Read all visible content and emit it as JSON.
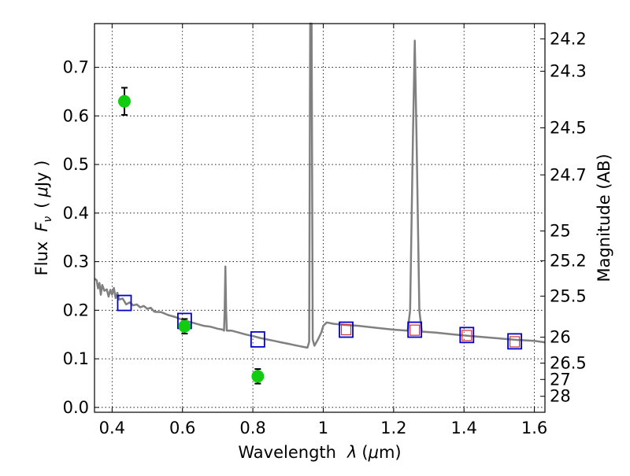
{
  "chart_data": {
    "type": "line",
    "title": "",
    "xlabel": "Wavelength",
    "xlabel_symbol": "λ",
    "xlabel_unit_open": "(",
    "xlabel_unit_mu": "μ",
    "xlabel_unit_rest": "m)",
    "ylabel": "Flux",
    "ylabel_symbol_F": "F",
    "ylabel_symbol_nu": "ν",
    "ylabel_unit_open": "(",
    "ylabel_unit_mu": "μ",
    "ylabel_unit_rest": "Jy )",
    "y2label": "Magnitude (AB)",
    "xlim": [
      0.35,
      1.63
    ],
    "ylim": [
      -0.01,
      0.79
    ],
    "grid": true,
    "x_ticks": [
      {
        "value": 0.4,
        "label": "0.4"
      },
      {
        "value": 0.6,
        "label": "0.6"
      },
      {
        "value": 0.8,
        "label": "0.8"
      },
      {
        "value": 1.0,
        "label": "1"
      },
      {
        "value": 1.2,
        "label": "1.2"
      },
      {
        "value": 1.4,
        "label": "1.4"
      },
      {
        "value": 1.6,
        "label": "1.6"
      }
    ],
    "y_ticks": [
      {
        "value": 0.0,
        "label": "0.0"
      },
      {
        "value": 0.1,
        "label": "0.1"
      },
      {
        "value": 0.2,
        "label": "0.2"
      },
      {
        "value": 0.3,
        "label": "0.3"
      },
      {
        "value": 0.4,
        "label": "0.4"
      },
      {
        "value": 0.5,
        "label": "0.5"
      },
      {
        "value": 0.6,
        "label": "0.6"
      },
      {
        "value": 0.7,
        "label": "0.7"
      }
    ],
    "y2_ticks": [
      {
        "mag": 24.2,
        "label": "24.2"
      },
      {
        "mag": 24.3,
        "label": "24.3"
      },
      {
        "mag": 24.5,
        "label": "24.5"
      },
      {
        "mag": 24.7,
        "label": "24.7"
      },
      {
        "mag": 25.0,
        "label": "25"
      },
      {
        "mag": 25.2,
        "label": "25.2"
      },
      {
        "mag": 25.5,
        "label": "25.5"
      },
      {
        "mag": 26.0,
        "label": "26"
      },
      {
        "mag": 26.5,
        "label": "26.5"
      },
      {
        "mag": 27.0,
        "label": "27"
      },
      {
        "mag": 28.0,
        "label": "28"
      }
    ],
    "series": [
      {
        "kind": "model-spectrum",
        "color": "#808080",
        "points": [
          [
            0.35,
            0.265
          ],
          [
            0.356,
            0.262
          ],
          [
            0.36,
            0.245
          ],
          [
            0.364,
            0.256
          ],
          [
            0.368,
            0.232
          ],
          [
            0.372,
            0.252
          ],
          [
            0.378,
            0.24
          ],
          [
            0.385,
            0.243
          ],
          [
            0.39,
            0.228
          ],
          [
            0.395,
            0.242
          ],
          [
            0.4,
            0.232
          ],
          [
            0.405,
            0.246
          ],
          [
            0.41,
            0.225
          ],
          [
            0.415,
            0.236
          ],
          [
            0.42,
            0.222
          ],
          [
            0.43,
            0.224
          ],
          [
            0.44,
            0.212
          ],
          [
            0.45,
            0.216
          ],
          [
            0.46,
            0.21
          ],
          [
            0.47,
            0.212
          ],
          [
            0.48,
            0.206
          ],
          [
            0.49,
            0.209
          ],
          [
            0.5,
            0.203
          ],
          [
            0.51,
            0.205
          ],
          [
            0.52,
            0.197
          ],
          [
            0.54,
            0.196
          ],
          [
            0.56,
            0.19
          ],
          [
            0.58,
            0.186
          ],
          [
            0.6,
            0.18
          ],
          [
            0.62,
            0.176
          ],
          [
            0.64,
            0.172
          ],
          [
            0.66,
            0.168
          ],
          [
            0.68,
            0.166
          ],
          [
            0.7,
            0.162
          ],
          [
            0.715,
            0.16
          ],
          [
            0.718,
            0.158
          ],
          [
            0.72,
            0.2
          ],
          [
            0.722,
            0.29
          ],
          [
            0.724,
            0.2
          ],
          [
            0.726,
            0.158
          ],
          [
            0.74,
            0.158
          ],
          [
            0.76,
            0.154
          ],
          [
            0.78,
            0.15
          ],
          [
            0.8,
            0.147
          ],
          [
            0.82,
            0.143
          ],
          [
            0.84,
            0.14
          ],
          [
            0.86,
            0.137
          ],
          [
            0.88,
            0.134
          ],
          [
            0.9,
            0.131
          ],
          [
            0.92,
            0.128
          ],
          [
            0.94,
            0.125
          ],
          [
            0.955,
            0.123
          ],
          [
            0.96,
            0.135
          ],
          [
            0.963,
            0.79
          ],
          [
            0.967,
            0.79
          ],
          [
            0.97,
            0.14
          ],
          [
            0.975,
            0.127
          ],
          [
            0.985,
            0.14
          ],
          [
            0.995,
            0.155
          ],
          [
            1.0,
            0.168
          ],
          [
            1.01,
            0.175
          ],
          [
            1.03,
            0.172
          ],
          [
            1.06,
            0.17
          ],
          [
            1.1,
            0.168
          ],
          [
            1.15,
            0.164
          ],
          [
            1.2,
            0.16
          ],
          [
            1.24,
            0.158
          ],
          [
            1.247,
            0.2
          ],
          [
            1.255,
            0.56
          ],
          [
            1.26,
            0.755
          ],
          [
            1.265,
            0.56
          ],
          [
            1.273,
            0.2
          ],
          [
            1.28,
            0.156
          ],
          [
            1.32,
            0.154
          ],
          [
            1.36,
            0.151
          ],
          [
            1.4,
            0.148
          ],
          [
            1.45,
            0.145
          ],
          [
            1.5,
            0.142
          ],
          [
            1.55,
            0.139
          ],
          [
            1.6,
            0.137
          ],
          [
            1.63,
            0.134
          ]
        ]
      },
      {
        "kind": "model-photometry",
        "marker": "square",
        "color": "#0000cc",
        "x": [
          0.435,
          0.606,
          0.814,
          1.065,
          1.26,
          1.408,
          1.544
        ],
        "y": [
          0.215,
          0.178,
          0.14,
          0.16,
          0.16,
          0.149,
          0.136
        ]
      },
      {
        "kind": "model-photometry-small",
        "marker": "square",
        "color": "#cc3333",
        "x": [
          1.065,
          1.26,
          1.408,
          1.544
        ],
        "y": [
          0.16,
          0.159,
          0.148,
          0.135
        ]
      },
      {
        "kind": "observed",
        "marker": "circle",
        "color": "#11cc11",
        "x": [
          0.435,
          0.606,
          0.814
        ],
        "y": [
          0.63,
          0.167,
          0.064
        ],
        "yerr": [
          0.028,
          0.015,
          0.015
        ]
      }
    ]
  }
}
